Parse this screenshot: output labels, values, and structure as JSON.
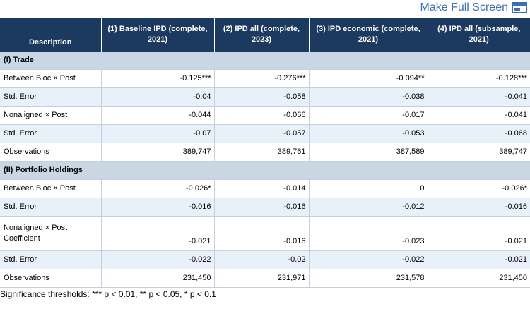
{
  "toolbar": {
    "fullscreen_label": "Make Full Screen"
  },
  "table": {
    "headers": [
      "Description",
      "(1) Baseline IPD (complete, 2021)",
      "(2) IPD all (complete, 2023)",
      "(3) IPD economic (complete, 2021)",
      "(4) IPD all (subsample, 2021)"
    ],
    "sections": [
      {
        "title": "(I) Trade",
        "rows": [
          {
            "label": "Between Bloc × Post",
            "values": [
              "-0.125***",
              "-0.276***",
              "-0.094**",
              "-0.128***"
            ]
          },
          {
            "label": "Std. Error",
            "values": [
              "-0.04",
              "-0.058",
              "-0.038",
              "-0.041"
            ]
          },
          {
            "label": "Nonaligned × Post",
            "values": [
              "-0.044",
              "-0.066",
              "-0.017",
              "-0.041"
            ]
          },
          {
            "label": "Std. Error",
            "values": [
              "-0.07",
              "-0.057",
              "-0.053",
              "-0.068"
            ]
          },
          {
            "label": "Observations",
            "values": [
              "389,747",
              "389,761",
              "387,589",
              "389,747"
            ]
          }
        ]
      },
      {
        "title": "(II) Portfolio Holdings",
        "rows": [
          {
            "label": "Between Bloc × Post",
            "values": [
              "-0.026*",
              "-0.014",
              "0",
              "-0.026*"
            ]
          },
          {
            "label": "Std. Error",
            "values": [
              "-0.016",
              "-0.016",
              "-0.012",
              "-0.016"
            ]
          },
          {
            "label": "Nonaligned × Post Coefficient",
            "values": [
              "-0.021",
              "-0.016",
              "-0.023",
              "-0.021"
            ]
          },
          {
            "label": "Std. Error",
            "values": [
              "-0.022",
              "-0.02",
              "-0.022",
              "-0.021"
            ]
          },
          {
            "label": "Observations",
            "values": [
              "231,450",
              "231,971",
              "231,578",
              "231,450"
            ]
          }
        ]
      }
    ]
  },
  "footnote": "Significance thresholds: *** p < 0.01, ** p < 0.05, * p < 0.1",
  "colors": {
    "header_bg": "#1c3a60",
    "section_bg": "#c9d6e3",
    "stripe_bg": "#e8f1fa",
    "link": "#3d6fb6"
  }
}
